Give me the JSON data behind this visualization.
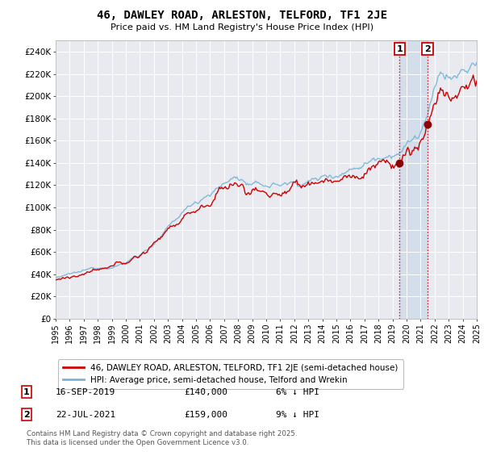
{
  "title": "46, DAWLEY ROAD, ARLESTON, TELFORD, TF1 2JE",
  "subtitle": "Price paid vs. HM Land Registry's House Price Index (HPI)",
  "ylim": [
    0,
    250000
  ],
  "yticks": [
    0,
    20000,
    40000,
    60000,
    80000,
    100000,
    120000,
    140000,
    160000,
    180000,
    200000,
    220000,
    240000
  ],
  "ytick_labels": [
    "£0",
    "£20K",
    "£40K",
    "£60K",
    "£80K",
    "£100K",
    "£120K",
    "£140K",
    "£160K",
    "£180K",
    "£200K",
    "£220K",
    "£240K"
  ],
  "hpi_color": "#7ab3d4",
  "price_color": "#cc0000",
  "marker1_month": 294,
  "marker1_label": "1",
  "marker1_date_str": "16-SEP-2019",
  "marker1_price": 140000,
  "marker1_pct": "6% ↓ HPI",
  "marker2_month": 318,
  "marker2_label": "2",
  "marker2_date_str": "22-JUL-2021",
  "marker2_price": 159000,
  "marker2_pct": "9% ↓ HPI",
  "legend1": "46, DAWLEY ROAD, ARLESTON, TELFORD, TF1 2JE (semi-detached house)",
  "legend2": "HPI: Average price, semi-detached house, Telford and Wrekin",
  "footnote": "Contains HM Land Registry data © Crown copyright and database right 2025.\nThis data is licensed under the Open Government Licence v3.0.",
  "start_year": 1995,
  "n_months": 361,
  "background_color": "#e8eaf0",
  "shade_color": "#ccd8e8"
}
